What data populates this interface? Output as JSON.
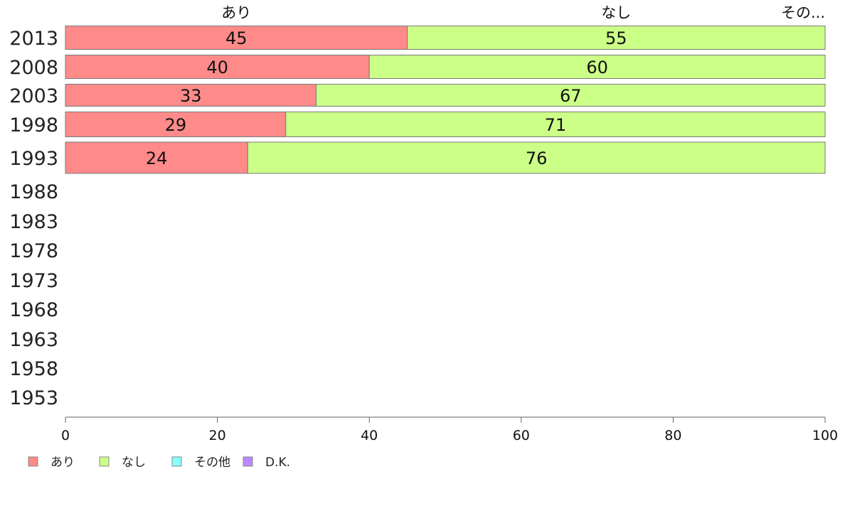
{
  "chart_data": {
    "type": "bar",
    "orientation": "horizontal",
    "stacked": true,
    "categories": [
      "2013",
      "2008",
      "2003",
      "1998",
      "1993",
      "1988",
      "1983",
      "1978",
      "1973",
      "1968",
      "1963",
      "1958",
      "1953"
    ],
    "series": [
      {
        "name": "あり",
        "color": "#ff8a8a",
        "values": [
          45,
          40,
          33,
          29,
          24,
          null,
          null,
          null,
          null,
          null,
          null,
          null,
          null
        ]
      },
      {
        "name": "なし",
        "color": "#ccff88",
        "values": [
          55,
          60,
          67,
          71,
          76,
          null,
          null,
          null,
          null,
          null,
          null,
          null,
          null
        ]
      },
      {
        "name": "その他",
        "color": "#88ffff",
        "values": [
          0,
          0,
          0,
          0,
          0,
          null,
          null,
          null,
          null,
          null,
          null,
          null,
          null
        ]
      },
      {
        "name": "D.K.",
        "color": "#bb88ff",
        "values": [
          0,
          0,
          0,
          0,
          0,
          null,
          null,
          null,
          null,
          null,
          null,
          null,
          null
        ]
      }
    ],
    "top_labels": [
      "あり",
      "なし",
      "その..."
    ],
    "xlim": [
      0,
      100
    ],
    "xticks": [
      0,
      20,
      40,
      60,
      80,
      100
    ],
    "title": "",
    "xlabel": "",
    "ylabel": "",
    "legend_position": "bottom-left",
    "grid": false
  }
}
